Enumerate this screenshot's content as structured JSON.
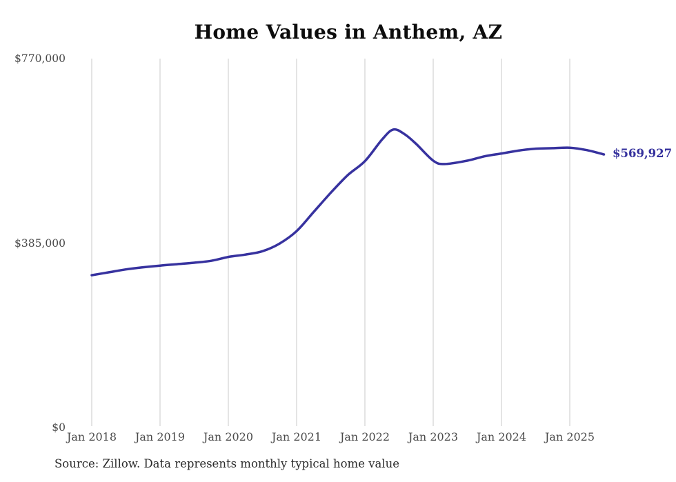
{
  "page": {
    "source_note": "Source: Zillow. Data represents monthly typical home value"
  },
  "chart_data": {
    "type": "line",
    "title": "Home Values in Anthem, AZ",
    "xlabel": "",
    "ylabel": "",
    "legend": "none",
    "grid": "vertical-only",
    "ylim": [
      0,
      770000
    ],
    "line_color": "#37329f",
    "label_color": "#35319d",
    "grid_color": "#c9c9c9",
    "axis_text_color": "#4a4a4a",
    "end_label": "$569,927",
    "end_value": 569927,
    "y_ticks": [
      {
        "value": 770000,
        "label": "$770,000"
      },
      {
        "value": 385000,
        "label": "$385,000"
      },
      {
        "value": 0,
        "label": "$0"
      }
    ],
    "x_ticks": [
      {
        "value": 2018,
        "label": "Jan 2018"
      },
      {
        "value": 2019,
        "label": "Jan 2019"
      },
      {
        "value": 2020,
        "label": "Jan 2020"
      },
      {
        "value": 2021,
        "label": "Jan 2021"
      },
      {
        "value": 2022,
        "label": "Jan 2022"
      },
      {
        "value": 2023,
        "label": "Jan 2023"
      },
      {
        "value": 2024,
        "label": "Jan 2024"
      },
      {
        "value": 2025,
        "label": "Jan 2025"
      }
    ],
    "series": [
      {
        "name": "Monthly typical home value",
        "points": [
          {
            "date": "2018-01",
            "value": 318000
          },
          {
            "date": "2018-04",
            "value": 324000
          },
          {
            "date": "2018-07",
            "value": 330000
          },
          {
            "date": "2018-10",
            "value": 334500
          },
          {
            "date": "2019-01",
            "value": 338000
          },
          {
            "date": "2019-04",
            "value": 341000
          },
          {
            "date": "2019-07",
            "value": 344000
          },
          {
            "date": "2019-10",
            "value": 348000
          },
          {
            "date": "2020-01",
            "value": 356000
          },
          {
            "date": "2020-04",
            "value": 361000
          },
          {
            "date": "2020-07",
            "value": 368000
          },
          {
            "date": "2020-10",
            "value": 384000
          },
          {
            "date": "2021-01",
            "value": 410000
          },
          {
            "date": "2021-04",
            "value": 450000
          },
          {
            "date": "2021-07",
            "value": 490000
          },
          {
            "date": "2021-10",
            "value": 527000
          },
          {
            "date": "2022-01",
            "value": 556000
          },
          {
            "date": "2022-04",
            "value": 601000
          },
          {
            "date": "2022-06",
            "value": 622000
          },
          {
            "date": "2022-08",
            "value": 612000
          },
          {
            "date": "2022-10",
            "value": 592000
          },
          {
            "date": "2023-01",
            "value": 557000
          },
          {
            "date": "2023-03",
            "value": 550000
          },
          {
            "date": "2023-07",
            "value": 557000
          },
          {
            "date": "2023-10",
            "value": 566000
          },
          {
            "date": "2024-01",
            "value": 572000
          },
          {
            "date": "2024-04",
            "value": 578000
          },
          {
            "date": "2024-07",
            "value": 582000
          },
          {
            "date": "2024-10",
            "value": 583000
          },
          {
            "date": "2025-01",
            "value": 584000
          },
          {
            "date": "2025-04",
            "value": 579000
          },
          {
            "date": "2025-07",
            "value": 569927
          }
        ]
      }
    ]
  }
}
